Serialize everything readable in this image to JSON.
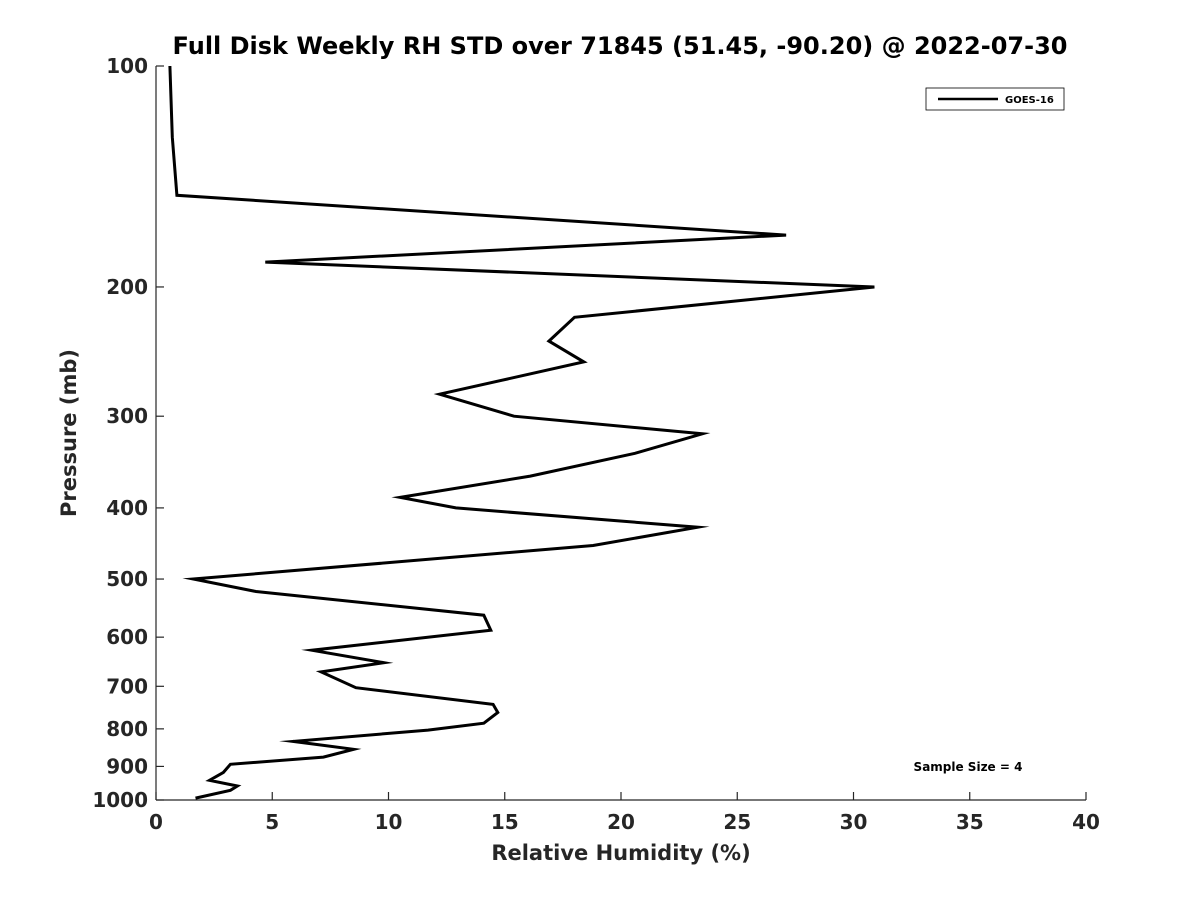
{
  "chart_data": {
    "type": "line",
    "title": "Full Disk Weekly RH STD over 71845 (51.45, -90.20) @ 2022-07-30",
    "xlabel": "Relative Humidity (%)",
    "ylabel": "Pressure (mb)",
    "xlim": [
      0,
      40
    ],
    "ylim": [
      100,
      1000
    ],
    "y_scale": "log",
    "y_reversed": true,
    "grid": false,
    "legend_position": "top-right",
    "x_ticks": [
      "0",
      "5",
      "10",
      "15",
      "20",
      "25",
      "30",
      "35",
      "40"
    ],
    "y_ticks": [
      "100",
      "200",
      "300",
      "400",
      "500",
      "600",
      "700",
      "800",
      "900",
      "1000"
    ],
    "annotation": "Sample Size = 4",
    "series": [
      {
        "name": "GOES-16",
        "color": "#000000",
        "points": [
          [
            0.6,
            100
          ],
          [
            0.7,
            125
          ],
          [
            0.9,
            150
          ],
          [
            27.1,
            170
          ],
          [
            4.7,
            185
          ],
          [
            30.9,
            200
          ],
          [
            18.0,
            220
          ],
          [
            16.9,
            237
          ],
          [
            18.4,
            253
          ],
          [
            12.2,
            280
          ],
          [
            15.4,
            300
          ],
          [
            23.5,
            317
          ],
          [
            20.6,
            337
          ],
          [
            16.1,
            362
          ],
          [
            10.5,
            387
          ],
          [
            12.9,
            400
          ],
          [
            23.3,
            425
          ],
          [
            18.8,
            450
          ],
          [
            1.6,
            500
          ],
          [
            4.3,
            520
          ],
          [
            14.1,
            560
          ],
          [
            14.4,
            587
          ],
          [
            6.7,
            625
          ],
          [
            9.8,
            650
          ],
          [
            7.1,
            669
          ],
          [
            8.6,
            703
          ],
          [
            14.5,
            741
          ],
          [
            14.7,
            760
          ],
          [
            14.1,
            786
          ],
          [
            11.7,
            803
          ],
          [
            5.9,
            832
          ],
          [
            8.5,
            853
          ],
          [
            7.2,
            874
          ],
          [
            3.2,
            894
          ],
          [
            2.9,
            917
          ],
          [
            2.3,
            940
          ],
          [
            3.5,
            957
          ],
          [
            3.2,
            970
          ],
          [
            1.7,
            994
          ]
        ]
      }
    ]
  }
}
